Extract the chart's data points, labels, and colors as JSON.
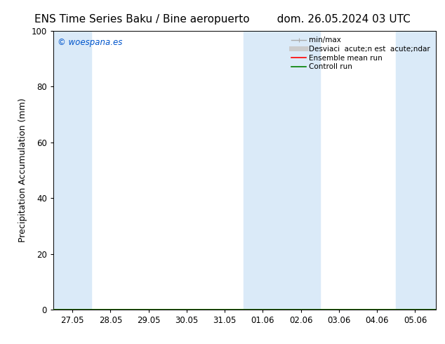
{
  "title": "ENS Time Series Baku / Bine aeropuerto        dom. 26.05.2024 03 UTC",
  "ylabel": "Precipitation Accumulation (mm)",
  "ylim": [
    0,
    100
  ],
  "yticks": [
    0,
    20,
    40,
    60,
    80,
    100
  ],
  "xtick_labels": [
    "27.05",
    "28.05",
    "29.05",
    "30.05",
    "31.05",
    "01.06",
    "02.06",
    "03.06",
    "04.06",
    "05.06"
  ],
  "watermark": "© woespana.es",
  "watermark_color": "#0055cc",
  "bg_color": "#ffffff",
  "plot_bg_color": "#ffffff",
  "band_color": "#daeaf8",
  "band_ranges": [
    [
      -0.5,
      0.5
    ],
    [
      4.5,
      6.5
    ],
    [
      8.5,
      9.55
    ]
  ],
  "legend_labels": [
    "min/max",
    "Desviaci  acute;n est  acute;ndar",
    "Ensemble mean run",
    "Controll run"
  ],
  "legend_colors": [
    "#aaaaaa",
    "#cccccc",
    "#ff0000",
    "#008000"
  ],
  "legend_lw": [
    1.0,
    5.0,
    1.2,
    1.2
  ],
  "title_fontsize": 11,
  "axis_label_fontsize": 9,
  "tick_fontsize": 8.5,
  "legend_fontsize": 7.5
}
